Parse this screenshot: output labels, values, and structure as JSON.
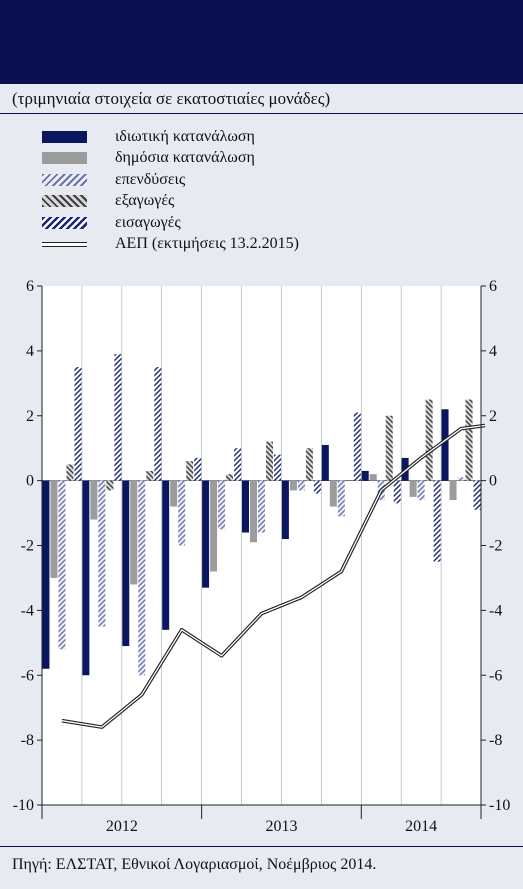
{
  "header": {
    "subtitle": "(τριμηνιαία στοιχεία σε εκατοστιαίες μονάδες)"
  },
  "legend": [
    {
      "key": "private",
      "label": "ιδιωτική κατανάλωση"
    },
    {
      "key": "public",
      "label": "δημόσια κατανάλωση"
    },
    {
      "key": "investment",
      "label": "επενδύσεις"
    },
    {
      "key": "exports",
      "label": "εξαγωγές"
    },
    {
      "key": "imports",
      "label": "εισαγωγές"
    },
    {
      "key": "gdp",
      "label": "ΑΕΠ (εκτιμήσεις 13.2.2015)"
    }
  ],
  "colors": {
    "background": "#e8eaf2",
    "banner": "#0b1150",
    "private": "#0b1660",
    "public": "#9c9c9c",
    "investment": "#6b72ac",
    "exports": "#3c3c3c",
    "imports": "#1a2478",
    "gdp_line": "#222222"
  },
  "chart_data": {
    "type": "bar",
    "categories": [
      "2012 Q1",
      "2012 Q2",
      "2012 Q3",
      "2012 Q4",
      "2013 Q1",
      "2013 Q2",
      "2013 Q3",
      "2013 Q4",
      "2014 Q1",
      "2014 Q2",
      "2014 Q3"
    ],
    "year_labels": [
      {
        "label": "2012",
        "start": 0,
        "end": 3
      },
      {
        "label": "2013",
        "start": 4,
        "end": 7
      },
      {
        "label": "2014",
        "start": 8,
        "end": 10
      }
    ],
    "ylim": [
      -10,
      6
    ],
    "yticks": [
      "6",
      "4",
      "2",
      "0",
      "-2",
      "-4",
      "-6",
      "-8",
      "-10"
    ],
    "grid": "vertical",
    "series": [
      {
        "name": "ιδιωτική κατανάλωση",
        "key": "private",
        "pattern": "solid",
        "values": [
          -5.8,
          -6.0,
          -5.1,
          -4.6,
          -3.3,
          -1.6,
          -1.8,
          1.1,
          0.3,
          0.7,
          2.2
        ]
      },
      {
        "name": "δημόσια κατανάλωση",
        "key": "public",
        "pattern": "solid",
        "values": [
          -3.0,
          -1.2,
          -3.2,
          -0.8,
          -2.8,
          -1.9,
          -0.3,
          -0.8,
          0.2,
          -0.5,
          -0.6
        ]
      },
      {
        "name": "επενδύσεις",
        "key": "investment",
        "pattern": "hatch",
        "values": [
          -5.2,
          -4.5,
          -6.0,
          -2.0,
          -1.5,
          -1.6,
          -0.3,
          -1.1,
          -0.6,
          -0.6,
          0.1
        ]
      },
      {
        "name": "εξαγωγές",
        "key": "exports",
        "pattern": "hatch",
        "values": [
          0.5,
          -0.3,
          0.3,
          0.6,
          0.2,
          1.2,
          1.0,
          0.0,
          2.0,
          2.5,
          2.5
        ]
      },
      {
        "name": "εισαγωγές",
        "key": "imports",
        "pattern": "hatch",
        "values": [
          3.5,
          3.9,
          3.5,
          0.7,
          1.0,
          0.8,
          -0.4,
          2.1,
          -0.7,
          -2.5,
          -0.9
        ]
      }
    ],
    "line": {
      "name": "ΑΕΠ (εκτιμήσεις 13.2.2015)",
      "key": "gdp",
      "x_index": [
        0,
        1,
        2,
        3,
        4,
        5,
        6,
        7,
        8,
        9,
        10,
        11
      ],
      "values": [
        -7.4,
        -7.6,
        -6.6,
        -4.6,
        -5.4,
        -4.1,
        -3.6,
        -2.8,
        -0.3,
        0.7,
        1.6,
        1.7
      ]
    }
  },
  "footer": {
    "source": "Πηγή: ΕΛΣΤΑΤ, Εθνικοί Λογαριασμοί, Νοέμβριος 2014."
  }
}
